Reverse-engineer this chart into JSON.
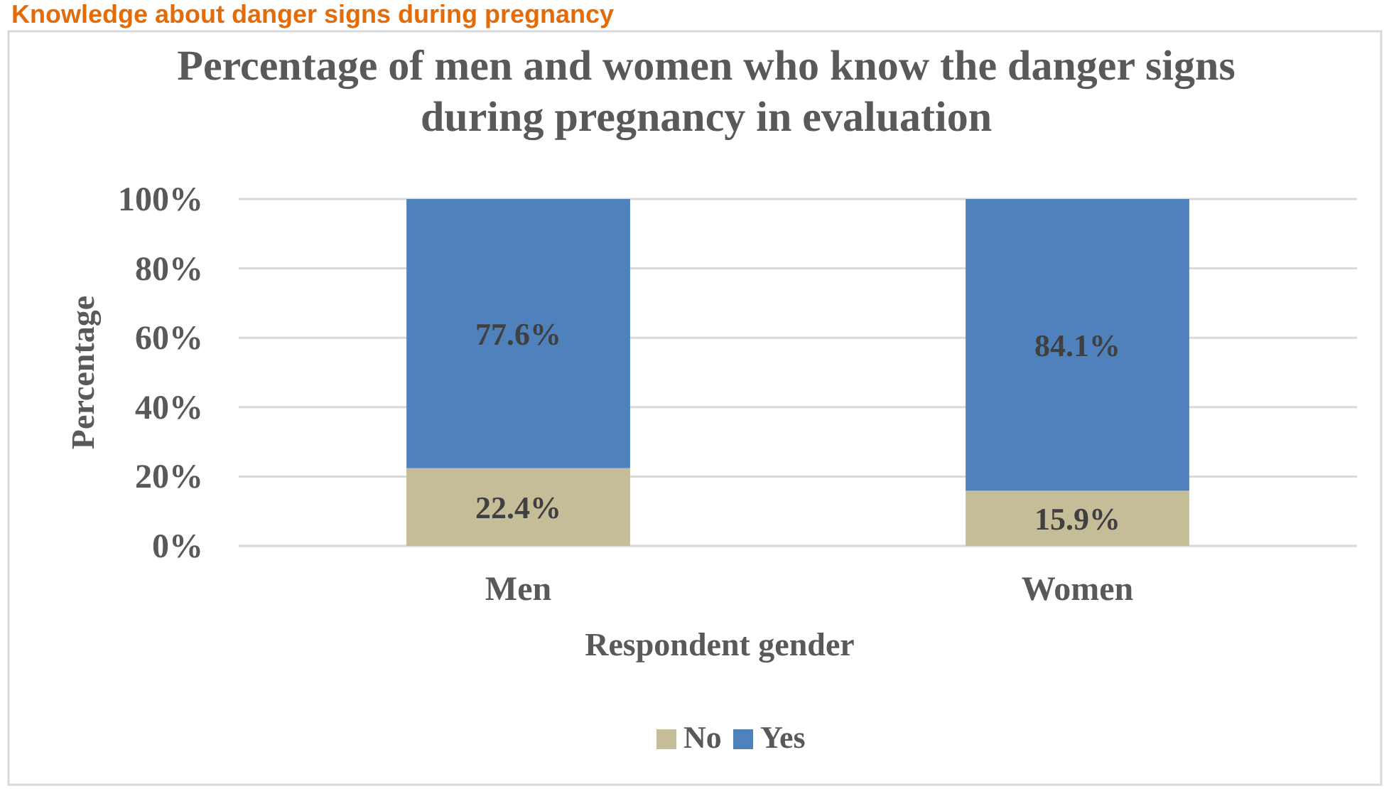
{
  "chart_data": {
    "type": "bar",
    "title": "Percentage of men and women who know the danger signs during pregnancy in evaluation",
    "xlabel": "Respondent gender",
    "ylabel": "Percentage",
    "annotations": [
      "Knowledge about danger signs during pregnancy"
    ],
    "categories": [
      "Men",
      "Women"
    ],
    "stacked": true,
    "series": [
      {
        "name": "No",
        "color": "#c4bd97",
        "values": [
          22.4,
          15.9
        ],
        "value_labels": [
          "22.4%",
          "15.9%"
        ]
      },
      {
        "name": "Yes",
        "color": "#4f81bd",
        "values": [
          77.6,
          84.1
        ],
        "value_labels": [
          "77.6%",
          "84.1%"
        ]
      }
    ],
    "ylim": [
      0,
      100
    ],
    "yticks": [
      {
        "value": 0,
        "label": "0%"
      },
      {
        "value": 20,
        "label": "20%"
      },
      {
        "value": 40,
        "label": "40%"
      },
      {
        "value": 60,
        "label": "60%"
      },
      {
        "value": 80,
        "label": "80%"
      },
      {
        "value": 100,
        "label": "100%"
      }
    ],
    "grid": "y",
    "legend": "bottom"
  }
}
